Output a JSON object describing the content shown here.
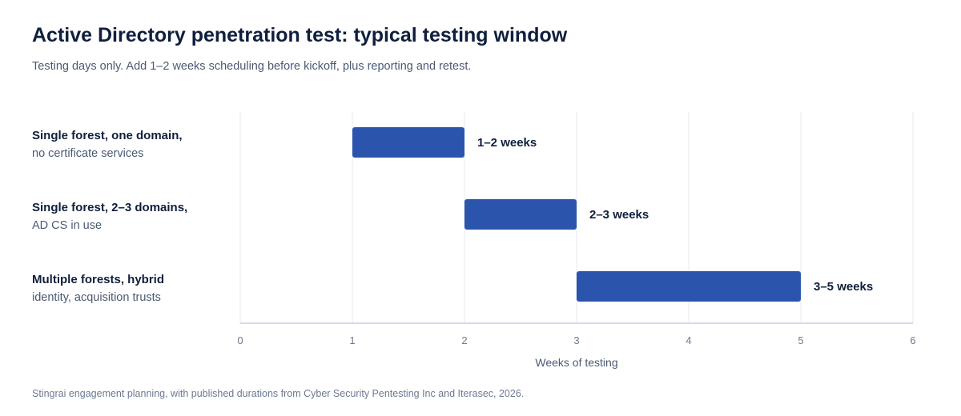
{
  "title": "Active Directory penetration test: typical testing window",
  "subtitle": "Testing days only. Add 1–2 weeks scheduling before kickoff, plus reporting and retest.",
  "source": "Stingrai engagement planning, with published durations from Cyber Security Pentesting Inc and Iterasec, 2026.",
  "colors": {
    "bar": "#2b55ad",
    "grid": "#e6e9f2",
    "axis": "#c9d0de",
    "tick_text": "#6b7a93",
    "category_primary": "#0f1f3d",
    "category_secondary": "#4b5a73"
  },
  "chart_data": {
    "type": "bar",
    "orientation": "horizontal",
    "subtype": "range",
    "categories": [
      {
        "line1": "Single forest, one domain,",
        "line2": "no certificate services"
      },
      {
        "line1": "Single forest, 2–3 domains,",
        "line2": "AD CS in use"
      },
      {
        "line1": "Multiple forests, hybrid",
        "line2": "identity, acquisition trusts"
      }
    ],
    "ranges": [
      {
        "start": 1,
        "end": 2,
        "label": "1–2 weeks"
      },
      {
        "start": 2,
        "end": 3,
        "label": "2–3 weeks"
      },
      {
        "start": 3,
        "end": 5,
        "label": "3–5 weeks"
      }
    ],
    "xlabel": "Weeks of testing",
    "xlim": [
      0,
      6
    ],
    "xticks": [
      "0",
      "1",
      "2",
      "3",
      "4",
      "5",
      "6"
    ],
    "grid": true
  }
}
